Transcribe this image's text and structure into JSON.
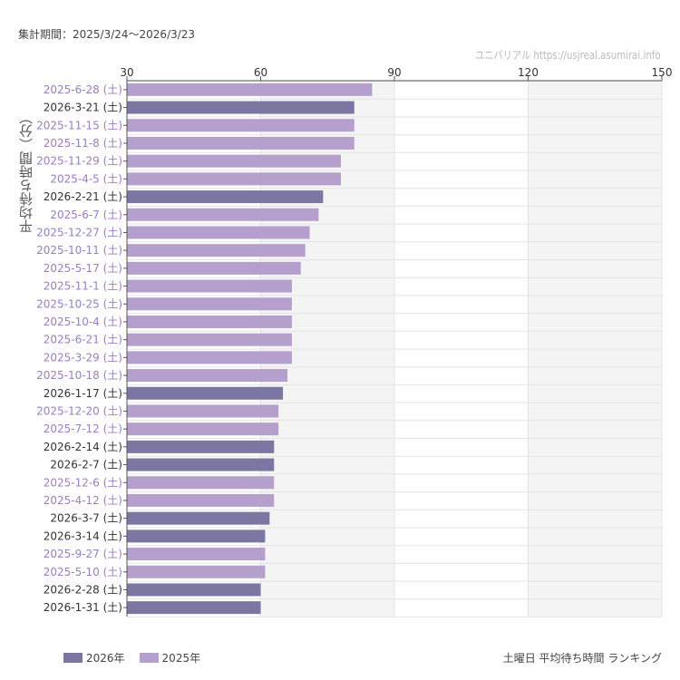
{
  "period": "集計期間：2025/3/24〜2026/3/23",
  "credit": "ユニバリアル https://usjreal.asumirai.info",
  "footer_title": "土曜日 平均待ち時間 ランキング",
  "colors": {
    "2026": "#7c76a3",
    "2025": "#b49fcd",
    "label2026": "#333333",
    "label2025": "#9a7fc1"
  },
  "chart_data": {
    "type": "bar",
    "orientation": "horizontal",
    "ylabel": "平均待ち時間（分）",
    "xlim": [
      30,
      150
    ],
    "xticks": [
      30,
      60,
      90,
      120,
      150
    ],
    "grid": true,
    "legend_position": "bottom-left",
    "legend": [
      {
        "name": "2026年",
        "year": "2026"
      },
      {
        "name": "2025年",
        "year": "2025"
      }
    ],
    "categories": [
      "2025-6-28 (土)",
      "2026-3-21 (土)",
      "2025-11-15 (土)",
      "2025-11-8 (土)",
      "2025-11-29 (土)",
      "2025-4-5 (土)",
      "2026-2-21 (土)",
      "2025-6-7 (土)",
      "2025-12-27 (土)",
      "2025-10-11 (土)",
      "2025-5-17 (土)",
      "2025-11-1 (土)",
      "2025-10-25 (土)",
      "2025-10-4 (土)",
      "2025-6-21 (土)",
      "2025-3-29 (土)",
      "2025-10-18 (土)",
      "2026-1-17 (土)",
      "2025-12-20 (土)",
      "2025-7-12 (土)",
      "2026-2-14 (土)",
      "2026-2-7 (土)",
      "2025-12-6 (土)",
      "2025-4-12 (土)",
      "2026-3-7 (土)",
      "2026-3-14 (土)",
      "2025-9-27 (土)",
      "2025-5-10 (土)",
      "2026-2-28 (土)",
      "2026-1-31 (土)"
    ],
    "values": [
      85,
      81,
      81,
      81,
      78,
      78,
      74,
      73,
      71,
      70,
      69,
      67,
      67,
      67,
      67,
      67,
      66,
      65,
      64,
      64,
      63,
      63,
      63,
      63,
      62,
      61,
      61,
      61,
      60,
      60
    ]
  }
}
